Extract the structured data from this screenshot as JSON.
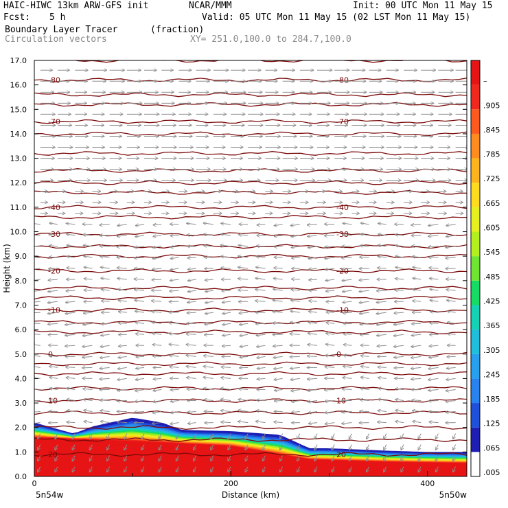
{
  "header": {
    "model_title": "HAIC-HIWC 13km ARW-GFS init",
    "org": "NCAR/MMM",
    "init": "Init: 00 UTC Mon 11 May 15",
    "fcst_label": "Fcst:",
    "fcst_value": "5 h",
    "valid": "Valid: 05 UTC Mon 11 May 15 (02 LST Mon 11 May 15)",
    "field": "Boundary Layer Tracer",
    "field_units": "(fraction)",
    "vectors": "Circulation vectors",
    "xy": "XY= 251.0,100.0 to 284.7,100.0"
  },
  "colors": {
    "contour": "#7a0a0a",
    "vector": "#8c8c8c",
    "colorbar": [
      "#ffffff",
      "#1e1eb4",
      "#1e50dc",
      "#2882f0",
      "#28a0f0",
      "#1ebedc",
      "#14d2b4",
      "#14dc64",
      "#6ee632",
      "#b4f01e",
      "#e6f01e",
      "#ffdc1e",
      "#ffb41e",
      "#ff8c1e",
      "#ff5a1e",
      "#f0281e",
      "#e61414"
    ]
  },
  "chart_data": {
    "type": "heatmap",
    "title": "Boundary Layer Tracer",
    "xlabel": "Distance (km)",
    "ylabel": "Height (km)",
    "xlim": [
      0,
      440
    ],
    "ylim": [
      0,
      17
    ],
    "x_ticks": [
      "0",
      "200",
      "400"
    ],
    "y_ticks": [
      "0.0",
      "1.0",
      "2.0",
      "3.0",
      "4.0",
      "5.0",
      "6.0",
      "7.0",
      "8.0",
      "9.0",
      "10.0",
      "11.0",
      "12.0",
      "13.0",
      "14.0",
      "15.0",
      "16.0",
      "17.0"
    ],
    "x_endpoints": [
      "5n54w",
      "5n50w"
    ],
    "colorbar_labels": [
      ".005",
      ".065",
      ".125",
      ".185",
      ".245",
      ".305",
      ".365",
      ".425",
      ".485",
      ".545",
      ".605",
      ".665",
      ".725",
      ".785",
      ".845",
      ".905",
      "–"
    ],
    "tracer_top_km": [
      [
        0,
        2.2
      ],
      [
        40,
        1.75
      ],
      [
        60,
        2.05
      ],
      [
        100,
        2.4
      ],
      [
        130,
        2.2
      ],
      [
        150,
        1.9
      ],
      [
        200,
        1.85
      ],
      [
        250,
        1.7
      ],
      [
        280,
        1.15
      ],
      [
        300,
        1.15
      ],
      [
        330,
        1.1
      ],
      [
        360,
        1.05
      ],
      [
        400,
        1.0
      ],
      [
        440,
        1.0
      ]
    ],
    "red_layer_top_km": [
      [
        0,
        1.6
      ],
      [
        100,
        1.45
      ],
      [
        200,
        1.25
      ],
      [
        280,
        0.7
      ],
      [
        360,
        0.6
      ],
      [
        440,
        0.55
      ]
    ],
    "temperature_contours": [
      {
        "level": "-80",
        "height_km": 16.2
      },
      {
        "level": "-70",
        "height_km": 14.5
      },
      {
        "level": "-40",
        "height_km": 11.0
      },
      {
        "level": "-30",
        "height_km": 9.9
      },
      {
        "level": "-20",
        "height_km": 8.4
      },
      {
        "level": "-10",
        "height_km": 6.8
      },
      {
        "level": "0",
        "height_km": 5.0
      },
      {
        "level": "10",
        "height_km": 3.1
      },
      {
        "level": "20",
        "height_km": 0.9
      }
    ],
    "extra_contour_heights_km": [
      17.0,
      15.6,
      15.2,
      14.0,
      13.2,
      12.5,
      12.0,
      11.6,
      10.6,
      9.4,
      9.0,
      7.7,
      7.3,
      6.3,
      5.9,
      4.6,
      4.2,
      3.6,
      2.6,
      2.0,
      1.5
    ],
    "vector_regimes": [
      {
        "from_km": 12.0,
        "to_km": 17.0,
        "direction": "eastward",
        "strength": 1.0
      },
      {
        "from_km": 10.5,
        "to_km": 12.0,
        "direction": "eastward",
        "strength": 0.4
      },
      {
        "from_km": 0.3,
        "to_km": 10.5,
        "direction": "westward",
        "strength": 0.55
      }
    ]
  }
}
